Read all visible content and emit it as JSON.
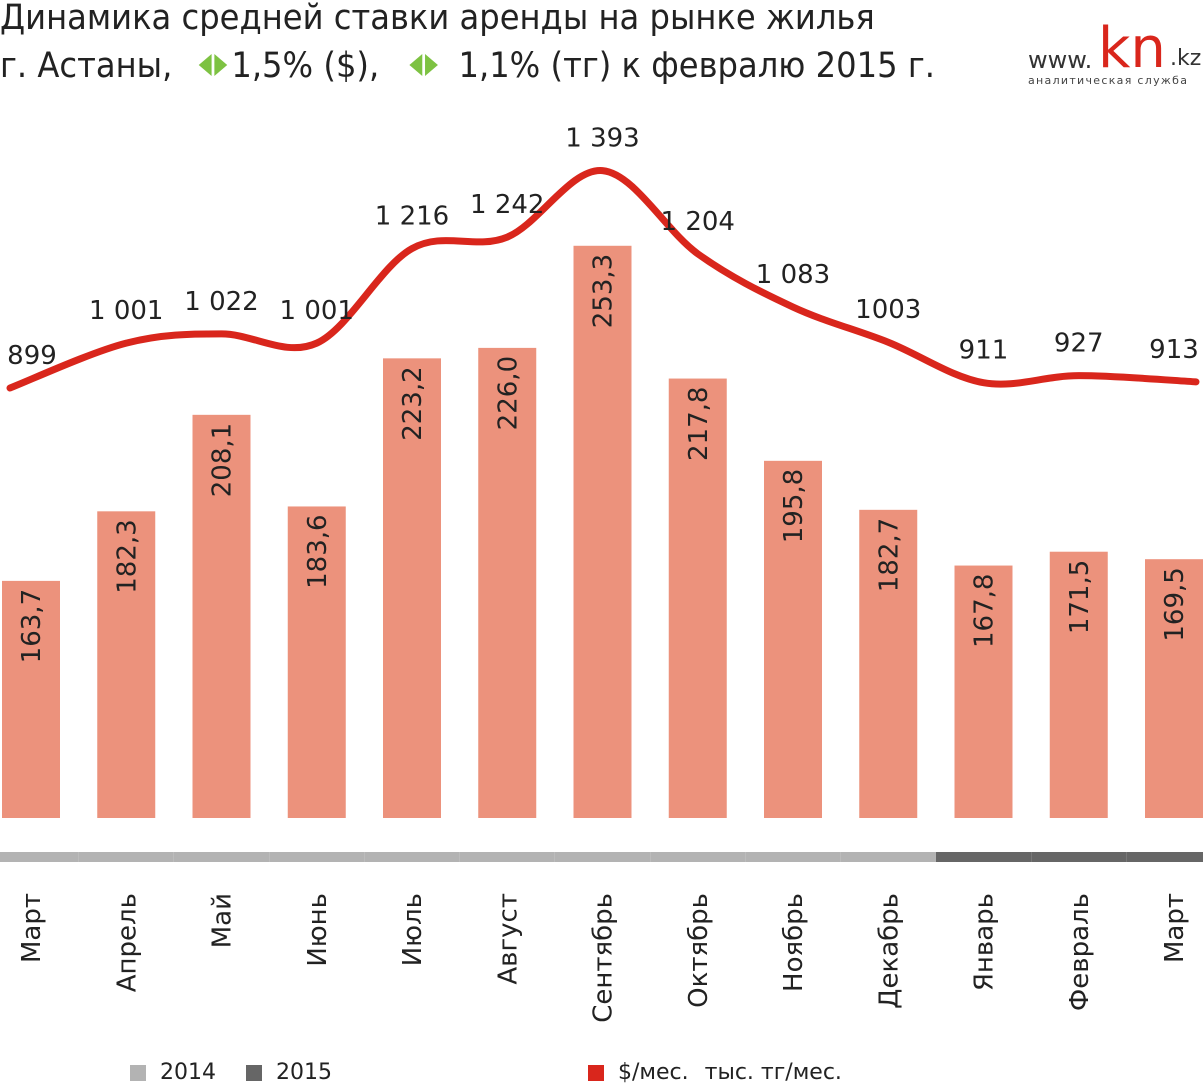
{
  "title": {
    "line1": "Динамика средней ставки аренды на рынке жилья",
    "line2_a": "г. Астаны,",
    "change_usd": "1,5% ($),",
    "change_kzt": "1,1% (тг) к февралю 2015 г."
  },
  "logo": {
    "www": "www.",
    "kn": "kn",
    "kz": ".kz",
    "subtitle": "аналитическая служба"
  },
  "colors": {
    "bar": "#ec927c",
    "line": "#d9261c",
    "y2014": "#b3b3b3",
    "y2015": "#666666",
    "arrow": "#7dc242"
  },
  "chart_data": {
    "type": "bar+line",
    "categories": [
      "Март",
      "Апрель",
      "Май",
      "Июнь",
      "Июль",
      "Август",
      "Сентябрь",
      "Октябрь",
      "Ноябрь",
      "Декабрь",
      "Январь",
      "Февраль",
      "Март"
    ],
    "years": [
      "2014",
      "2014",
      "2014",
      "2014",
      "2014",
      "2014",
      "2014",
      "2014",
      "2014",
      "2014",
      "2015",
      "2015",
      "2015"
    ],
    "series": [
      {
        "name": "тыс. тг/мес.",
        "type": "bar",
        "values": [
          163.7,
          182.3,
          208.1,
          183.6,
          223.2,
          226.0,
          253.3,
          217.8,
          195.8,
          182.7,
          167.8,
          171.5,
          169.5
        ],
        "labels": [
          "163,7",
          "182,3",
          "208,1",
          "183,6",
          "223,2",
          "226,0",
          "253,3",
          "217,8",
          "195,8",
          "182,7",
          "167,8",
          "171,5",
          "169,5"
        ]
      },
      {
        "name": "$/мес.",
        "type": "line",
        "values": [
          899,
          1001,
          1022,
          1001,
          1216,
          1242,
          1393,
          1204,
          1083,
          1003,
          911,
          927,
          913
        ],
        "labels": [
          "899",
          "1 001",
          "1 022",
          "1 001",
          "1 216",
          "1 242",
          "1 393",
          "1 204",
          "1 083",
          "1003",
          "911",
          "927",
          "913"
        ]
      }
    ],
    "legend": {
      "y2014": "2014",
      "y2015": "2015",
      "line": "$/мес.",
      "bar": "тыс. тг/мес."
    }
  }
}
